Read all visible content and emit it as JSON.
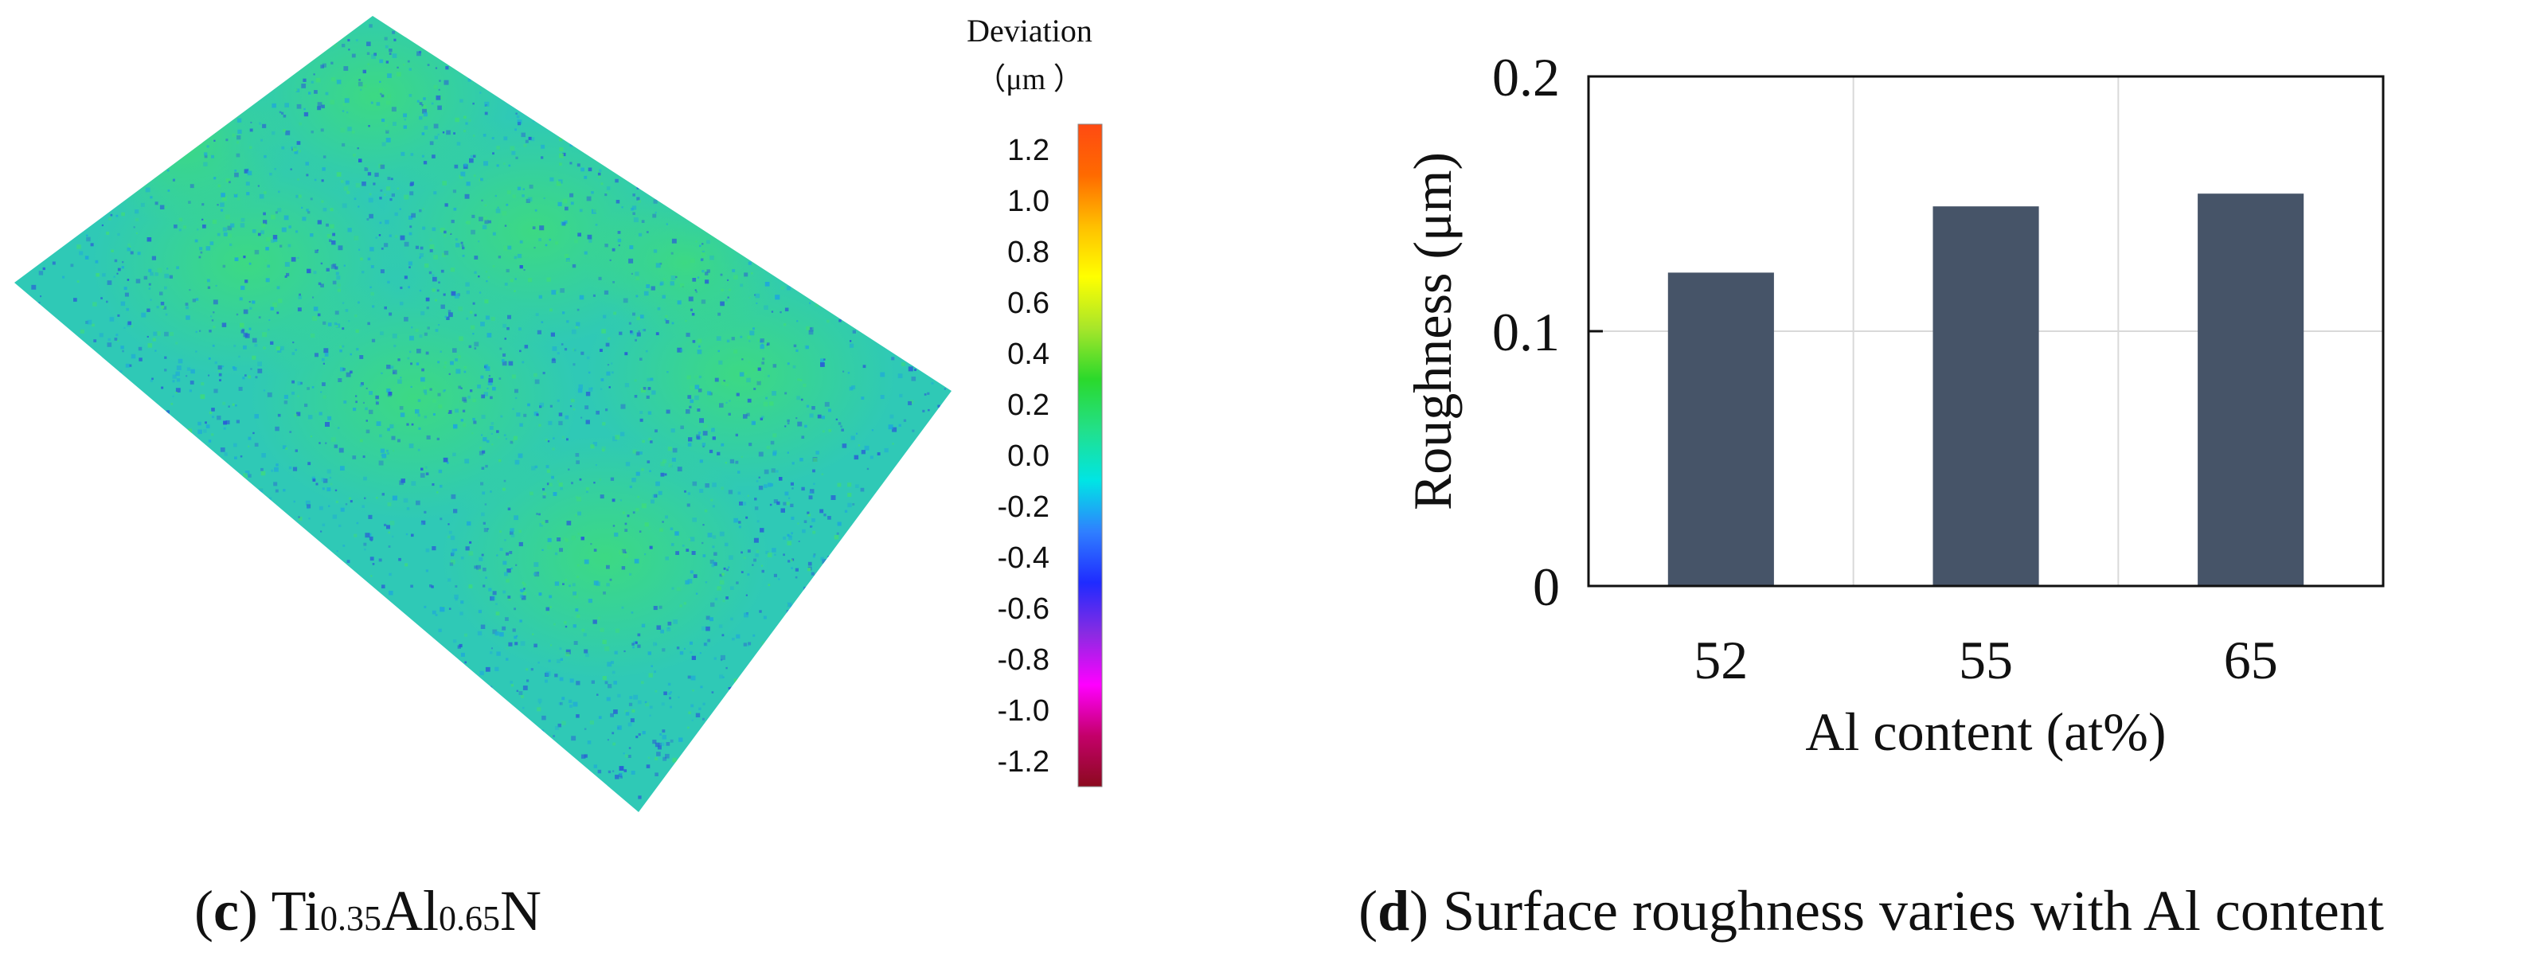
{
  "panel_c": {
    "caption_letter": "c",
    "caption_formula": {
      "el1": "Ti",
      "sub1": "0.35",
      "el2": "Al",
      "sub2": "0.65",
      "el3": "N"
    },
    "colorbar": {
      "title_line1": "Deviation",
      "title_line2": "（μm ）",
      "ticks": [
        "1.2",
        "1.0",
        "0.8",
        "0.6",
        "0.4",
        "0.2",
        "0.0",
        "-0.2",
        "-0.4",
        "-0.6",
        "-0.8",
        "-1.0",
        "-1.2"
      ],
      "tick_values": [
        1.2,
        1.0,
        0.8,
        0.6,
        0.4,
        0.2,
        0.0,
        -0.2,
        -0.4,
        -0.6,
        -0.8,
        -1.0,
        -1.2
      ],
      "range": [
        -1.3,
        1.3
      ],
      "colors": [
        "#8b0a1e",
        "#c4006a",
        "#ff00ff",
        "#8a2be2",
        "#1f2bff",
        "#2f7fff",
        "#00e5e5",
        "#22e08a",
        "#2bd92b",
        "#a8e62a",
        "#ffff00",
        "#ffbf00",
        "#ff6a00",
        "#ff4a12"
      ]
    },
    "surface_colors": {
      "base": "#2fc9b6",
      "dark": "#2a5fd6",
      "bright": "#3fdc7a",
      "mid": "#1fa9d9"
    }
  },
  "panel_d": {
    "caption_letter": "d",
    "caption_text": "Surface roughness varies with Al content"
  },
  "chart_data": {
    "type": "bar",
    "categories": [
      "52",
      "55",
      "65"
    ],
    "values": [
      0.123,
      0.149,
      0.154
    ],
    "title": "",
    "xlabel": "Al content (at%)",
    "ylabel": "Roughness (μm)",
    "ylim": [
      0,
      0.2
    ],
    "yticks": [
      0,
      0.1,
      0.2
    ],
    "ytick_labels": [
      "0",
      "0.1",
      "0.2"
    ],
    "grid": true,
    "bar_color": "#465468"
  }
}
